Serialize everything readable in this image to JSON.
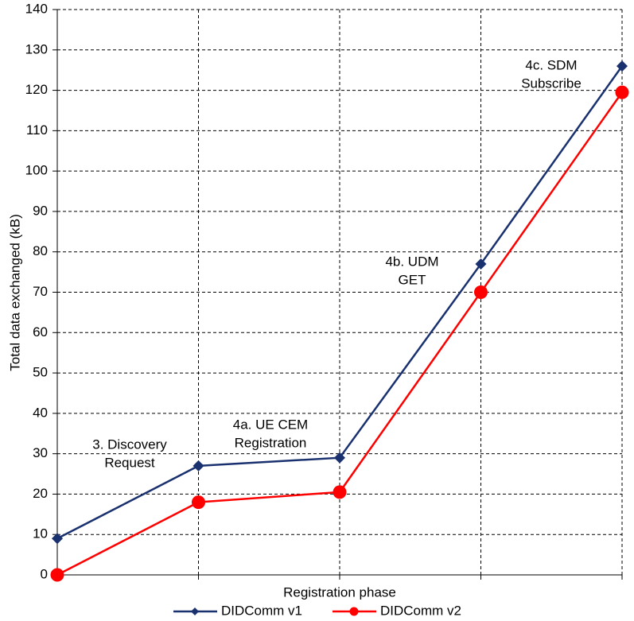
{
  "chart_data": {
    "type": "line",
    "x_label": "Registration phase",
    "y_label": "Total data exchanged (kB)",
    "categories": [
      null,
      null,
      null,
      null,
      null
    ],
    "series": [
      {
        "name": "DIDComm v1",
        "color": "#1a3170",
        "marker": "diamond",
        "values": [
          9,
          27,
          29,
          77,
          126
        ]
      },
      {
        "name": "DIDComm v2",
        "color": "#ff0000",
        "marker": "circle",
        "values": [
          0,
          18,
          20.5,
          70,
          119.5
        ]
      }
    ],
    "annotations": [
      [
        "3. Discovery",
        "Request"
      ],
      [
        "4a. UE CEM",
        "Registration"
      ],
      [
        "4b. UDM",
        "GET"
      ],
      [
        "4c. SDM",
        "Subscribe"
      ]
    ],
    "ylim": [
      0,
      140
    ],
    "yticks": [
      0,
      10,
      20,
      30,
      40,
      50,
      60,
      70,
      80,
      90,
      100,
      110,
      120,
      130,
      140
    ],
    "grid": true,
    "legend": "bottom"
  }
}
